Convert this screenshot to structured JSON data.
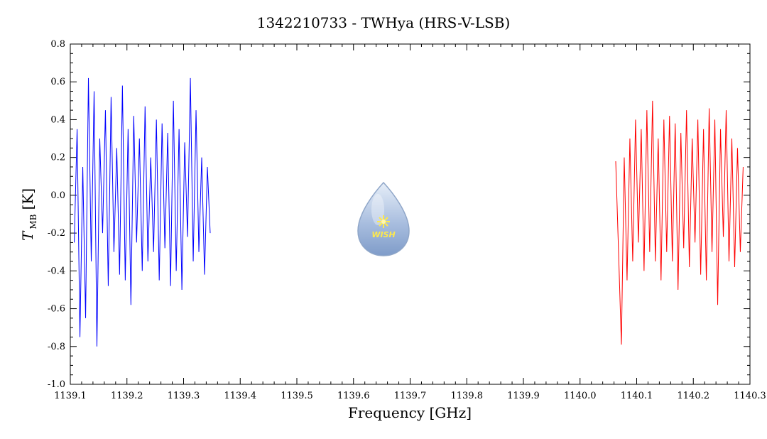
{
  "chart_data": {
    "type": "line",
    "title": "1342210733 - TWHya (HRS-V-LSB)",
    "xlabel": "Frequency [GHz]",
    "ylabel_main": "T",
    "ylabel_sub": "MB",
    "ylabel_unit": "[K]",
    "xlim": [
      1139.1,
      1140.3
    ],
    "ylim": [
      -1.0,
      0.8
    ],
    "x_ticks": [
      "1139.1",
      "1139.2",
      "1139.3",
      "1139.4",
      "1139.5",
      "1139.6",
      "1139.7",
      "1139.8",
      "1139.9",
      "1140.0",
      "1140.1",
      "1140.2",
      "1140.3"
    ],
    "y_ticks": [
      "0.8",
      "0.6",
      "0.4",
      "0.2",
      "0.0",
      "-0.2",
      "-0.4",
      "-0.6",
      "-0.8",
      "-1.0"
    ],
    "grid": false,
    "series": [
      {
        "color": "#0000ff",
        "x": [
          1139.107,
          1139.112,
          1139.117,
          1139.122,
          1139.127,
          1139.132,
          1139.137,
          1139.142,
          1139.147,
          1139.152,
          1139.157,
          1139.162,
          1139.167,
          1139.172,
          1139.177,
          1139.182,
          1139.187,
          1139.192,
          1139.197,
          1139.202,
          1139.207,
          1139.212,
          1139.217,
          1139.222,
          1139.227,
          1139.232,
          1139.237,
          1139.242,
          1139.247,
          1139.252,
          1139.257,
          1139.262,
          1139.267,
          1139.272,
          1139.277,
          1139.282,
          1139.287,
          1139.292,
          1139.297,
          1139.302,
          1139.307,
          1139.312,
          1139.317,
          1139.322,
          1139.327,
          1139.332,
          1139.337,
          1139.342,
          1139.347
        ],
        "y": [
          -0.25,
          0.35,
          -0.75,
          0.15,
          -0.65,
          0.62,
          -0.35,
          0.55,
          -0.8,
          0.3,
          -0.2,
          0.45,
          -0.48,
          0.52,
          -0.3,
          0.25,
          -0.42,
          0.58,
          -0.45,
          0.35,
          -0.58,
          0.42,
          -0.25,
          0.3,
          -0.4,
          0.47,
          -0.35,
          0.2,
          -0.3,
          0.4,
          -0.45,
          0.38,
          -0.28,
          0.33,
          -0.48,
          0.5,
          -0.4,
          0.35,
          -0.5,
          0.28,
          -0.22,
          0.62,
          -0.35,
          0.45,
          -0.3,
          0.2,
          -0.42,
          0.15,
          -0.2
        ]
      },
      {
        "color": "#ff0000",
        "x": [
          1140.063,
          1140.068,
          1140.073,
          1140.078,
          1140.083,
          1140.088,
          1140.093,
          1140.098,
          1140.103,
          1140.108,
          1140.113,
          1140.118,
          1140.123,
          1140.128,
          1140.133,
          1140.138,
          1140.143,
          1140.148,
          1140.153,
          1140.158,
          1140.163,
          1140.168,
          1140.173,
          1140.178,
          1140.183,
          1140.188,
          1140.193,
          1140.198,
          1140.203,
          1140.208,
          1140.213,
          1140.218,
          1140.223,
          1140.228,
          1140.233,
          1140.238,
          1140.243,
          1140.248,
          1140.253,
          1140.258,
          1140.263,
          1140.268,
          1140.273,
          1140.278,
          1140.283,
          1140.288
        ],
        "y": [
          0.18,
          -0.3,
          -0.79,
          0.2,
          -0.45,
          0.3,
          -0.35,
          0.4,
          -0.25,
          0.35,
          -0.4,
          0.45,
          -0.3,
          0.5,
          -0.35,
          0.3,
          -0.45,
          0.4,
          -0.3,
          0.42,
          -0.35,
          0.38,
          -0.5,
          0.33,
          -0.28,
          0.45,
          -0.38,
          0.3,
          -0.25,
          0.4,
          -0.42,
          0.35,
          -0.45,
          0.46,
          -0.3,
          0.4,
          -0.58,
          0.35,
          -0.22,
          0.45,
          -0.35,
          0.3,
          -0.38,
          0.25,
          -0.3,
          0.15
        ]
      }
    ]
  },
  "watermark": {
    "text": "WISH"
  }
}
